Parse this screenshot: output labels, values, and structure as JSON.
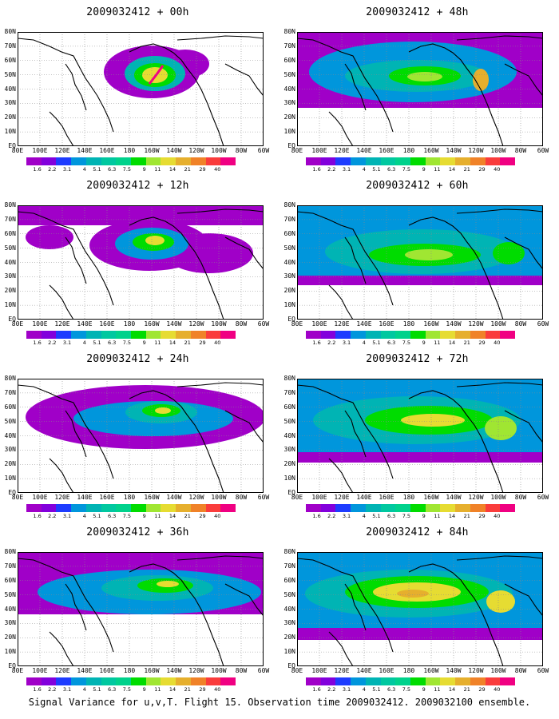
{
  "panels": [
    {
      "title": "2009032412 + 00h"
    },
    {
      "title": "2009032412 + 48h"
    },
    {
      "title": "2009032412 + 12h"
    },
    {
      "title": "2009032412 + 60h"
    },
    {
      "title": "2009032412 + 24h"
    },
    {
      "title": "2009032412 + 72h"
    },
    {
      "title": "2009032412 + 36h"
    },
    {
      "title": "2009032412 + 84h"
    }
  ],
  "lat_labels": [
    "80N",
    "70N",
    "60N",
    "50N",
    "40N",
    "30N",
    "20N",
    "10N",
    "EQ"
  ],
  "lon_labels": [
    "80E",
    "100E",
    "120E",
    "140E",
    "160E",
    "180",
    "160W",
    "140W",
    "120W",
    "100W",
    "80W",
    "60W"
  ],
  "colorbar": {
    "labels": [
      "1.6",
      "2.2",
      "3.1",
      "4",
      "5.1",
      "6.3",
      "7.5",
      "9",
      "11",
      "14",
      "21",
      "29",
      "40"
    ],
    "colors": [
      "#a000c8",
      "#8200dc",
      "#1e3cff",
      "#0096dc",
      "#00b4b4",
      "#00c8a0",
      "#00d28c",
      "#00dc00",
      "#a0e632",
      "#e6dc32",
      "#e6af2d",
      "#f08228",
      "#fa3c3c",
      "#f00082"
    ]
  },
  "caption": "Signal Variance for u,v,T. Flight 15. Observation time 2009032412. 2009032100 ensemble."
}
